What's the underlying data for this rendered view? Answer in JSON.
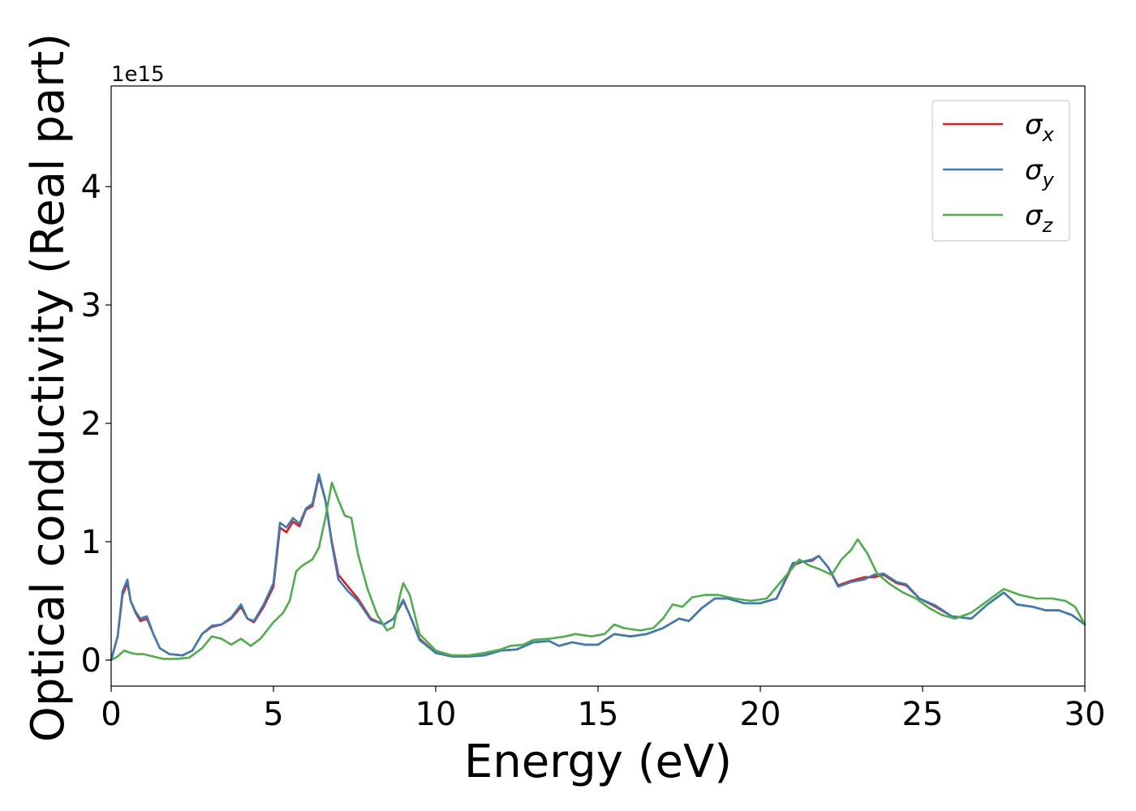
{
  "chart_data": {
    "type": "line",
    "title": "",
    "xlabel": "Energy (eV)",
    "ylabel": "Optical conductivity (Real part)",
    "y_offset_text": "1e15",
    "xlim": [
      0,
      30
    ],
    "ylim": [
      -0.22,
      4.85
    ],
    "y_scale_factor": 1000000000000000.0,
    "x_ticks": [
      0,
      5,
      10,
      15,
      20,
      25,
      30
    ],
    "x_tick_labels": [
      "0",
      "5",
      "10",
      "15",
      "20",
      "25",
      "30"
    ],
    "y_ticks": [
      0,
      1,
      2,
      3,
      4
    ],
    "y_tick_labels": [
      "0",
      "1",
      "2",
      "3",
      "4"
    ],
    "grid": false,
    "legend_position": "top-right",
    "series": [
      {
        "name": "σ_x",
        "legend_base": "σ",
        "legend_sub": "x",
        "color": "#e41a1c",
        "points": [
          [
            0,
            0
          ],
          [
            0.2,
            0.2
          ],
          [
            0.35,
            0.55
          ],
          [
            0.5,
            0.65
          ],
          [
            0.6,
            0.5
          ],
          [
            0.75,
            0.4
          ],
          [
            0.9,
            0.33
          ],
          [
            1.1,
            0.35
          ],
          [
            1.3,
            0.22
          ],
          [
            1.5,
            0.1
          ],
          [
            1.8,
            0.05
          ],
          [
            2.2,
            0.04
          ],
          [
            2.5,
            0.08
          ],
          [
            2.8,
            0.22
          ],
          [
            3.1,
            0.28
          ],
          [
            3.4,
            0.3
          ],
          [
            3.7,
            0.35
          ],
          [
            4.0,
            0.45
          ],
          [
            4.2,
            0.35
          ],
          [
            4.4,
            0.32
          ],
          [
            4.7,
            0.45
          ],
          [
            5.0,
            0.62
          ],
          [
            5.2,
            1.12
          ],
          [
            5.4,
            1.08
          ],
          [
            5.6,
            1.17
          ],
          [
            5.8,
            1.13
          ],
          [
            6.0,
            1.27
          ],
          [
            6.2,
            1.3
          ],
          [
            6.4,
            1.55
          ],
          [
            6.6,
            1.35
          ],
          [
            6.8,
            1.0
          ],
          [
            7.0,
            0.72
          ],
          [
            7.3,
            0.62
          ],
          [
            7.6,
            0.52
          ],
          [
            8.0,
            0.35
          ],
          [
            8.4,
            0.3
          ],
          [
            8.7,
            0.35
          ],
          [
            9.0,
            0.5
          ],
          [
            9.2,
            0.38
          ],
          [
            9.5,
            0.18
          ],
          [
            10.0,
            0.06
          ],
          [
            10.5,
            0.03
          ],
          [
            11.0,
            0.03
          ],
          [
            11.5,
            0.04
          ],
          [
            12.0,
            0.08
          ],
          [
            12.5,
            0.09
          ],
          [
            13.0,
            0.15
          ],
          [
            13.5,
            0.16
          ],
          [
            13.8,
            0.12
          ],
          [
            14.2,
            0.15
          ],
          [
            14.6,
            0.13
          ],
          [
            15.0,
            0.13
          ],
          [
            15.5,
            0.22
          ],
          [
            16.0,
            0.2
          ],
          [
            16.5,
            0.22
          ],
          [
            17.0,
            0.27
          ],
          [
            17.5,
            0.35
          ],
          [
            17.8,
            0.33
          ],
          [
            18.2,
            0.44
          ],
          [
            18.6,
            0.52
          ],
          [
            19.0,
            0.52
          ],
          [
            19.5,
            0.48
          ],
          [
            20.0,
            0.48
          ],
          [
            20.5,
            0.52
          ],
          [
            21.0,
            0.8
          ],
          [
            21.3,
            0.83
          ],
          [
            21.6,
            0.84
          ],
          [
            21.8,
            0.88
          ],
          [
            22.1,
            0.78
          ],
          [
            22.4,
            0.63
          ],
          [
            22.8,
            0.67
          ],
          [
            23.2,
            0.7
          ],
          [
            23.5,
            0.7
          ],
          [
            23.8,
            0.72
          ],
          [
            24.2,
            0.65
          ],
          [
            24.5,
            0.63
          ],
          [
            24.9,
            0.52
          ],
          [
            25.4,
            0.45
          ],
          [
            25.9,
            0.37
          ],
          [
            26.5,
            0.35
          ],
          [
            27.0,
            0.47
          ],
          [
            27.5,
            0.57
          ],
          [
            27.9,
            0.47
          ],
          [
            28.4,
            0.45
          ],
          [
            28.8,
            0.42
          ],
          [
            29.2,
            0.42
          ],
          [
            29.6,
            0.38
          ],
          [
            30.0,
            0.3
          ]
        ]
      },
      {
        "name": "σ_y",
        "legend_base": "σ",
        "legend_sub": "y",
        "color": "#377eb8",
        "points": [
          [
            0,
            0
          ],
          [
            0.2,
            0.2
          ],
          [
            0.35,
            0.58
          ],
          [
            0.5,
            0.68
          ],
          [
            0.6,
            0.5
          ],
          [
            0.75,
            0.41
          ],
          [
            0.9,
            0.35
          ],
          [
            1.1,
            0.37
          ],
          [
            1.3,
            0.22
          ],
          [
            1.5,
            0.1
          ],
          [
            1.8,
            0.05
          ],
          [
            2.2,
            0.04
          ],
          [
            2.5,
            0.08
          ],
          [
            2.8,
            0.22
          ],
          [
            3.1,
            0.29
          ],
          [
            3.4,
            0.3
          ],
          [
            3.7,
            0.36
          ],
          [
            4.0,
            0.47
          ],
          [
            4.2,
            0.35
          ],
          [
            4.4,
            0.33
          ],
          [
            4.7,
            0.47
          ],
          [
            5.0,
            0.65
          ],
          [
            5.2,
            1.16
          ],
          [
            5.4,
            1.12
          ],
          [
            5.6,
            1.2
          ],
          [
            5.8,
            1.15
          ],
          [
            6.0,
            1.28
          ],
          [
            6.2,
            1.32
          ],
          [
            6.4,
            1.57
          ],
          [
            6.6,
            1.35
          ],
          [
            6.8,
            0.98
          ],
          [
            7.0,
            0.68
          ],
          [
            7.3,
            0.58
          ],
          [
            7.6,
            0.5
          ],
          [
            8.0,
            0.34
          ],
          [
            8.4,
            0.3
          ],
          [
            8.7,
            0.35
          ],
          [
            9.0,
            0.51
          ],
          [
            9.2,
            0.38
          ],
          [
            9.5,
            0.17
          ],
          [
            10.0,
            0.06
          ],
          [
            10.5,
            0.03
          ],
          [
            11.0,
            0.03
          ],
          [
            11.5,
            0.04
          ],
          [
            12.0,
            0.08
          ],
          [
            12.5,
            0.09
          ],
          [
            13.0,
            0.15
          ],
          [
            13.5,
            0.16
          ],
          [
            13.8,
            0.12
          ],
          [
            14.2,
            0.15
          ],
          [
            14.6,
            0.13
          ],
          [
            15.0,
            0.13
          ],
          [
            15.5,
            0.22
          ],
          [
            16.0,
            0.2
          ],
          [
            16.5,
            0.22
          ],
          [
            17.0,
            0.27
          ],
          [
            17.5,
            0.35
          ],
          [
            17.8,
            0.33
          ],
          [
            18.2,
            0.44
          ],
          [
            18.6,
            0.52
          ],
          [
            19.0,
            0.52
          ],
          [
            19.5,
            0.48
          ],
          [
            20.0,
            0.48
          ],
          [
            20.5,
            0.52
          ],
          [
            21.0,
            0.82
          ],
          [
            21.3,
            0.83
          ],
          [
            21.6,
            0.85
          ],
          [
            21.8,
            0.88
          ],
          [
            22.1,
            0.78
          ],
          [
            22.4,
            0.62
          ],
          [
            22.8,
            0.66
          ],
          [
            23.2,
            0.68
          ],
          [
            23.5,
            0.72
          ],
          [
            23.8,
            0.73
          ],
          [
            24.2,
            0.66
          ],
          [
            24.5,
            0.64
          ],
          [
            24.9,
            0.52
          ],
          [
            25.4,
            0.46
          ],
          [
            25.9,
            0.37
          ],
          [
            26.5,
            0.35
          ],
          [
            27.0,
            0.47
          ],
          [
            27.5,
            0.57
          ],
          [
            27.9,
            0.47
          ],
          [
            28.4,
            0.45
          ],
          [
            28.8,
            0.42
          ],
          [
            29.2,
            0.42
          ],
          [
            29.6,
            0.38
          ],
          [
            30.0,
            0.3
          ]
        ]
      },
      {
        "name": "σ_z",
        "legend_base": "σ",
        "legend_sub": "z",
        "color": "#4daf4a",
        "points": [
          [
            0,
            0
          ],
          [
            0.2,
            0.03
          ],
          [
            0.4,
            0.08
          ],
          [
            0.6,
            0.06
          ],
          [
            0.8,
            0.05
          ],
          [
            1.0,
            0.05
          ],
          [
            1.3,
            0.03
          ],
          [
            1.6,
            0.01
          ],
          [
            2.0,
            0.01
          ],
          [
            2.4,
            0.02
          ],
          [
            2.8,
            0.1
          ],
          [
            3.1,
            0.2
          ],
          [
            3.4,
            0.18
          ],
          [
            3.7,
            0.13
          ],
          [
            4.0,
            0.18
          ],
          [
            4.3,
            0.12
          ],
          [
            4.6,
            0.18
          ],
          [
            5.0,
            0.32
          ],
          [
            5.3,
            0.4
          ],
          [
            5.5,
            0.5
          ],
          [
            5.7,
            0.75
          ],
          [
            5.9,
            0.8
          ],
          [
            6.2,
            0.85
          ],
          [
            6.4,
            0.95
          ],
          [
            6.6,
            1.2
          ],
          [
            6.8,
            1.5
          ],
          [
            7.0,
            1.35
          ],
          [
            7.2,
            1.22
          ],
          [
            7.4,
            1.2
          ],
          [
            7.6,
            0.9
          ],
          [
            7.9,
            0.6
          ],
          [
            8.2,
            0.38
          ],
          [
            8.5,
            0.25
          ],
          [
            8.7,
            0.28
          ],
          [
            8.9,
            0.55
          ],
          [
            9.0,
            0.65
          ],
          [
            9.2,
            0.55
          ],
          [
            9.5,
            0.22
          ],
          [
            10.0,
            0.08
          ],
          [
            10.5,
            0.04
          ],
          [
            11.0,
            0.04
          ],
          [
            11.5,
            0.06
          ],
          [
            12.0,
            0.09
          ],
          [
            12.3,
            0.12
          ],
          [
            12.7,
            0.13
          ],
          [
            13.0,
            0.17
          ],
          [
            13.5,
            0.18
          ],
          [
            14.0,
            0.2
          ],
          [
            14.3,
            0.22
          ],
          [
            14.8,
            0.2
          ],
          [
            15.2,
            0.22
          ],
          [
            15.5,
            0.3
          ],
          [
            15.8,
            0.27
          ],
          [
            16.3,
            0.25
          ],
          [
            16.7,
            0.27
          ],
          [
            17.0,
            0.35
          ],
          [
            17.3,
            0.47
          ],
          [
            17.6,
            0.45
          ],
          [
            17.9,
            0.53
          ],
          [
            18.3,
            0.55
          ],
          [
            18.7,
            0.55
          ],
          [
            19.2,
            0.52
          ],
          [
            19.7,
            0.5
          ],
          [
            20.2,
            0.52
          ],
          [
            20.6,
            0.65
          ],
          [
            21.0,
            0.78
          ],
          [
            21.2,
            0.85
          ],
          [
            21.5,
            0.8
          ],
          [
            21.8,
            0.77
          ],
          [
            22.2,
            0.72
          ],
          [
            22.5,
            0.85
          ],
          [
            22.8,
            0.93
          ],
          [
            23.0,
            1.02
          ],
          [
            23.3,
            0.9
          ],
          [
            23.6,
            0.73
          ],
          [
            24.0,
            0.64
          ],
          [
            24.4,
            0.57
          ],
          [
            24.8,
            0.52
          ],
          [
            25.2,
            0.44
          ],
          [
            25.6,
            0.38
          ],
          [
            26.0,
            0.35
          ],
          [
            26.5,
            0.4
          ],
          [
            27.0,
            0.5
          ],
          [
            27.5,
            0.6
          ],
          [
            28.0,
            0.55
          ],
          [
            28.5,
            0.52
          ],
          [
            29.0,
            0.52
          ],
          [
            29.4,
            0.5
          ],
          [
            29.7,
            0.45
          ],
          [
            30.0,
            0.3
          ]
        ]
      }
    ]
  }
}
